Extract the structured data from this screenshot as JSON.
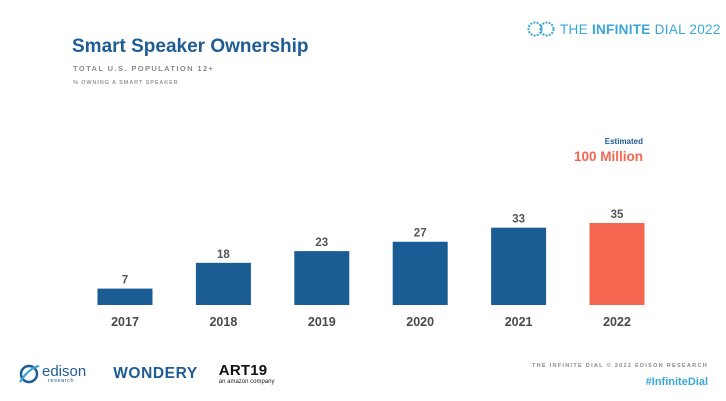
{
  "header": {
    "brand_text_light": "THE ",
    "brand_text_bold": "INFINITE",
    "brand_text_rest": " DIAL 2022",
    "brand_logo_icon": "infinity-rings-icon"
  },
  "chart_data": {
    "type": "bar",
    "title": "Smart Speaker Ownership",
    "subtitle": "TOTAL U.S. POPULATION 12+",
    "ylabel": "% OWNING A SMART SPEAKER",
    "categories": [
      "2017",
      "2018",
      "2019",
      "2020",
      "2021",
      "2022"
    ],
    "values": [
      7,
      18,
      23,
      27,
      33,
      35
    ],
    "ylim": [
      0,
      35
    ],
    "grid": false,
    "legend": "none",
    "bar_colors": [
      "#1a5d95",
      "#1a5d95",
      "#1a5d95",
      "#1a5d95",
      "#1a5d95",
      "#f4664f"
    ],
    "annotation": {
      "label": "Estimated",
      "value": "100 Million",
      "category": "2022"
    }
  },
  "footer": {
    "edison_name": "edison",
    "edison_sub": "research",
    "wondery": "WONDERY",
    "art19_name": "ART19",
    "art19_sub": "an amazon company",
    "credit": "THE INFINITE DIAL  © 2022 EDISON RESEARCH",
    "hashtag": "#InfiniteDial"
  },
  "colors": {
    "primary_blue": "#1f5c94",
    "bar_blue": "#1a5d95",
    "highlight_coral": "#f4664f",
    "accent_cyan": "#3aa6d8"
  }
}
